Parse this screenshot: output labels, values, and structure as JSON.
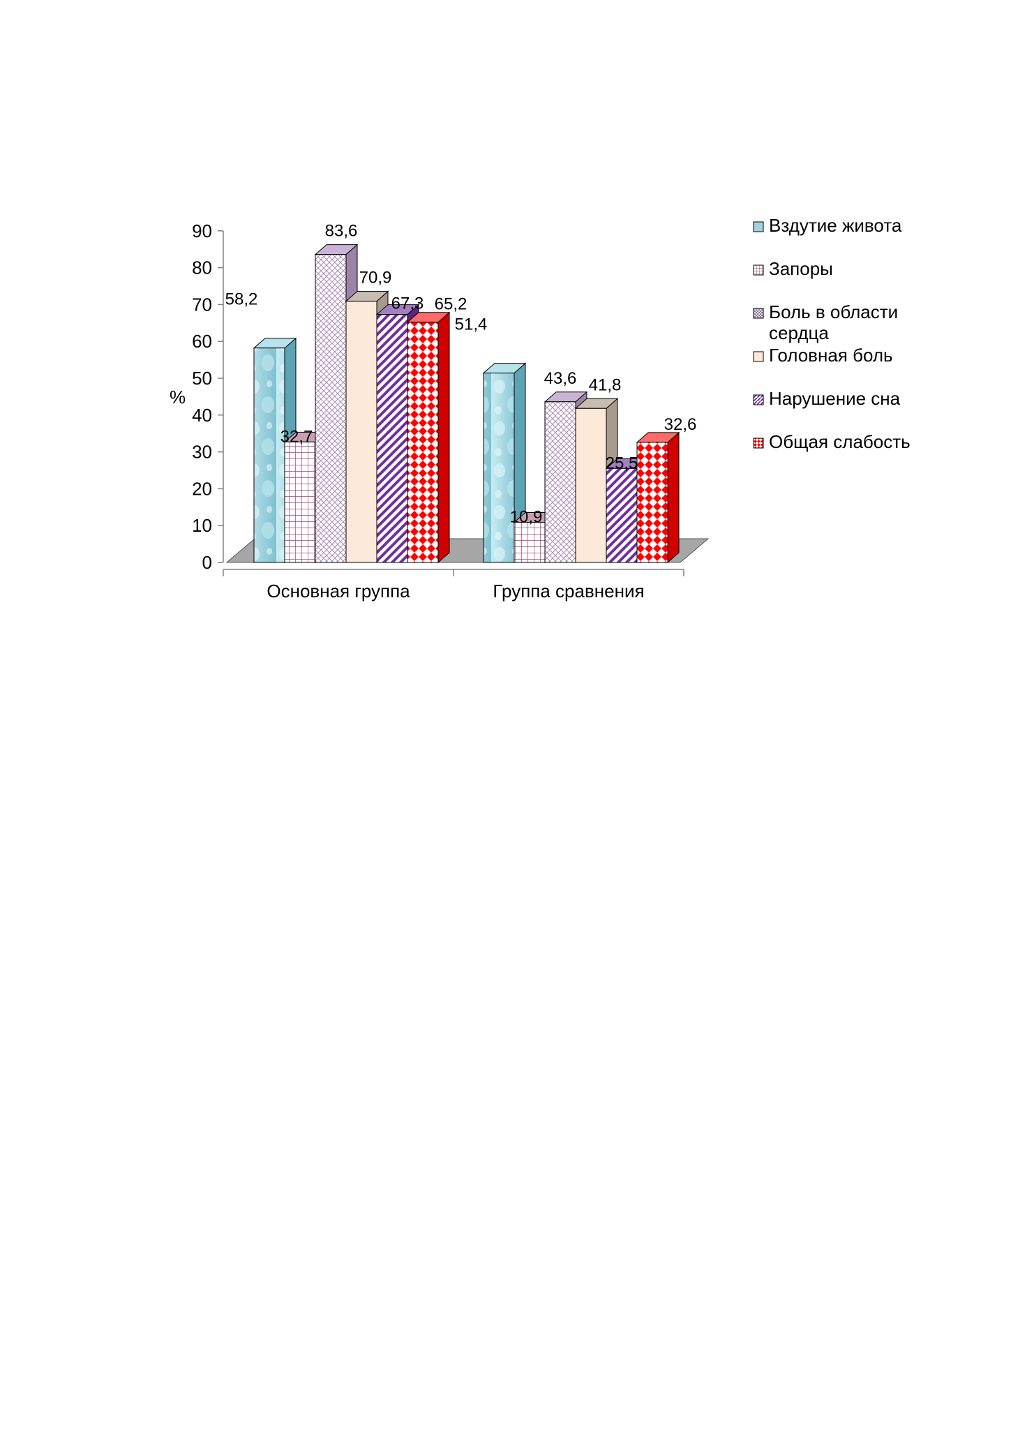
{
  "chart_data": {
    "type": "bar",
    "title": "",
    "xlabel": "",
    "ylabel": "%",
    "ylim": [
      0,
      90
    ],
    "yticks": [
      0,
      10,
      20,
      30,
      40,
      50,
      60,
      70,
      80,
      90
    ],
    "categories": [
      "Основная группа",
      "Группа сравнения"
    ],
    "series": [
      {
        "name": "Вздутие живота",
        "values": [
          58.2,
          51.4
        ],
        "labels": [
          "58,2",
          "51,4"
        ],
        "color": "#9fd3df",
        "pattern": "bubbles"
      },
      {
        "name": "Запоры",
        "values": [
          32.7,
          10.9
        ],
        "labels": [
          "32,7",
          "10,9"
        ],
        "color": "#a0476b",
        "pattern": "grid"
      },
      {
        "name": "Боль в области сердца",
        "values": [
          83.6,
          43.6
        ],
        "labels": [
          "83,6",
          "43,6"
        ],
        "color": "#b89fc4",
        "pattern": "crosshatch"
      },
      {
        "name": "Головная боль",
        "values": [
          70.9,
          41.8
        ],
        "labels": [
          "70,9",
          "41,8"
        ],
        "color": "#fde9d9",
        "pattern": "solid"
      },
      {
        "name": "Нарушение сна",
        "values": [
          67.3,
          25.5
        ],
        "labels": [
          "67,3",
          "25,5"
        ],
        "color": "#7030a0",
        "pattern": "diagonal"
      },
      {
        "name": "Общая слабость",
        "values": [
          65.2,
          32.6
        ],
        "labels": [
          "65,2",
          "32,6"
        ],
        "color": "#ff0000",
        "pattern": "diamonds"
      }
    ],
    "legend_position": "right",
    "grid": false,
    "three_d": true
  }
}
